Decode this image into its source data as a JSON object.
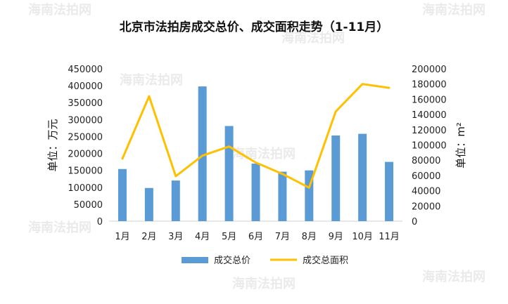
{
  "chart_data": {
    "type": "bar",
    "title": "北京市法拍房成交总价、成交面积走势（1-11月）",
    "categories": [
      "1月",
      "2月",
      "3月",
      "4月",
      "5月",
      "6月",
      "7月",
      "8月",
      "9月",
      "10月",
      "11月"
    ],
    "ylabel_left": "单位：万元",
    "ylabel_right": "单位：m²",
    "ylim_left": [
      0,
      450000
    ],
    "ylim_right": [
      0,
      200000
    ],
    "yticks_left": [
      "0",
      "50000",
      "100000",
      "150000",
      "200000",
      "250000",
      "300000",
      "350000",
      "400000",
      "450000"
    ],
    "yticks_right": [
      "0",
      "20000",
      "40000",
      "60000",
      "80000",
      "100000",
      "120000",
      "140000",
      "160000",
      "180000",
      "200000"
    ],
    "grid": false,
    "legend_position": "bottom",
    "series": [
      {
        "name": "成交总价",
        "type": "bar",
        "axis": "left",
        "color": "#5b9bd5",
        "values": [
          154000,
          98000,
          120000,
          398000,
          281000,
          170000,
          146000,
          150000,
          253000,
          258000,
          175000
        ]
      },
      {
        "name": "成交总面积",
        "type": "line",
        "axis": "right",
        "color": "#ffc000",
        "values": [
          82000,
          164000,
          59000,
          86000,
          98000,
          77000,
          62000,
          44000,
          144000,
          180000,
          175000
        ]
      }
    ]
  },
  "watermark": {
    "text": "海南法拍网"
  }
}
